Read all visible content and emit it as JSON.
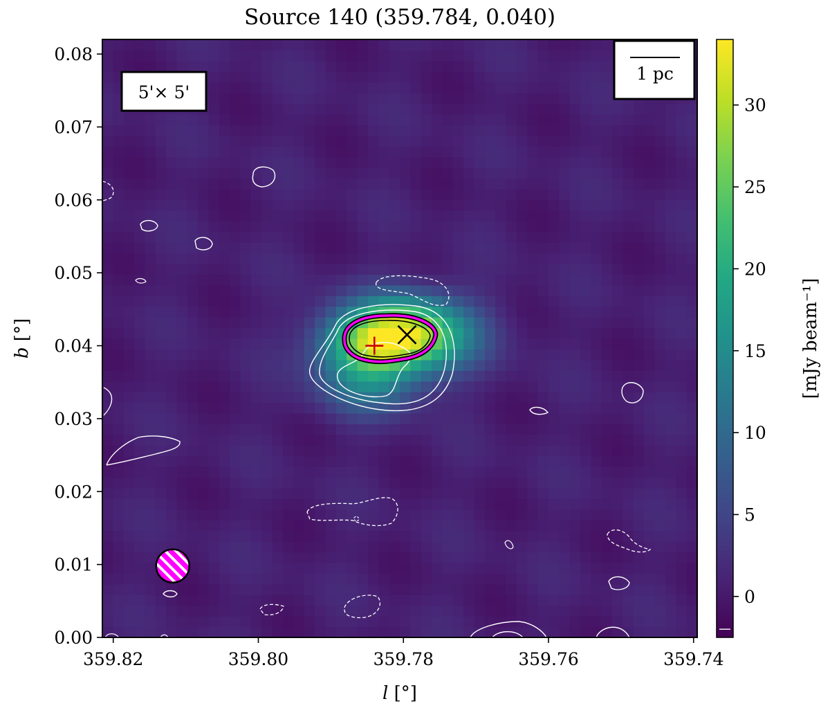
{
  "chart_data": {
    "type": "heatmap",
    "title": "Source 140 (359.784, 0.040)",
    "xlabel_var": "l",
    "xlabel_unit": " [°]",
    "ylabel_var": "b",
    "ylabel_unit": " [°]",
    "xlim": [
      359.8215,
      359.7395
    ],
    "ylim": [
      0.0,
      0.082
    ],
    "xticks": [
      359.82,
      359.8,
      359.78,
      359.76,
      359.74
    ],
    "xtick_labels": [
      "359.82",
      "359.80",
      "359.78",
      "359.76",
      "359.74"
    ],
    "yticks": [
      0.0,
      0.01,
      0.02,
      0.03,
      0.04,
      0.05,
      0.06,
      0.07,
      0.08
    ],
    "ytick_labels": [
      "0.00",
      "0.01",
      "0.02",
      "0.03",
      "0.04",
      "0.05",
      "0.06",
      "0.07",
      "0.08"
    ],
    "colorbar": {
      "label": "[mJy beam⁻¹]",
      "min": -2.5,
      "max": 34,
      "ticks": [
        0,
        5,
        10,
        15,
        20,
        25,
        30
      ],
      "tick_labels": [
        "0",
        "5",
        "10",
        "15",
        "20",
        "25",
        "30"
      ],
      "colormap": "viridis"
    },
    "field_size_label": "5'× 5'",
    "scalebar_label": "1 pc",
    "source_peak": {
      "l": 359.7795,
      "b": 0.0415,
      "marker": "x"
    },
    "source_centroid": {
      "l": 359.784,
      "b": 0.04,
      "marker": "+"
    },
    "beam": {
      "l": 359.8118,
      "b": 0.0098,
      "color": "#ff00ff",
      "hatch": true
    },
    "emission_blobs": [
      {
        "l": 359.7795,
        "b": 0.0415,
        "sl": 0.006,
        "sb": 0.0036,
        "amp": 31
      },
      {
        "l": 359.786,
        "b": 0.04,
        "sl": 0.0045,
        "sb": 0.003,
        "amp": 12
      },
      {
        "l": 359.785,
        "b": 0.0345,
        "sl": 0.005,
        "sb": 0.003,
        "amp": 9
      }
    ],
    "contours": {
      "source_outline_color": "#ff00ff",
      "positive_color": "#ffffff",
      "negative_color": "#ffffff"
    },
    "colors": {
      "background": "#440154",
      "marker_peak": "#000000",
      "marker_centroid": "#cc0000"
    }
  }
}
